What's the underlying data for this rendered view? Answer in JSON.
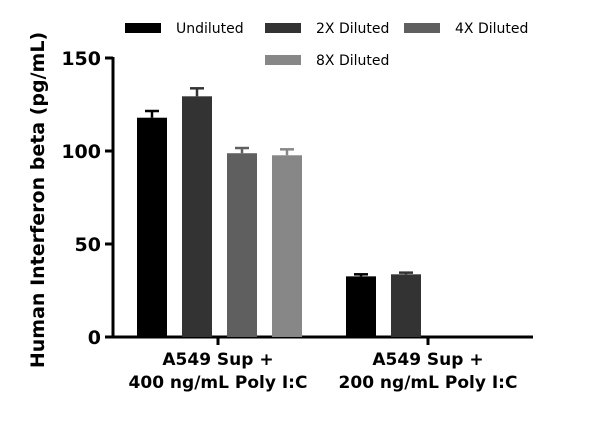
{
  "chart_data": {
    "type": "bar",
    "title": "",
    "xlabel": "",
    "ylabel": "Human Interferon beta (pg/mL)",
    "ylim": [
      0,
      150
    ],
    "yticks": [
      0,
      50,
      100,
      150
    ],
    "grid": false,
    "legend_position": "top",
    "categories": [
      [
        "A549 Sup +",
        "400 ng/mL Poly I:C"
      ],
      [
        "A549 Sup +",
        "200 ng/mL Poly I:C"
      ]
    ],
    "series": [
      {
        "name": "Undiluted",
        "color": "#000000",
        "values": [
          117.9,
          32.6
        ],
        "errors": [
          3.6,
          1.1
        ]
      },
      {
        "name": "2X Diluted",
        "color": "#333333",
        "values": [
          129.4,
          33.7
        ],
        "errors": [
          4.3,
          0.9
        ]
      },
      {
        "name": "4X Diluted",
        "color": "#5f5f5f",
        "values": [
          98.8,
          null
        ],
        "errors": [
          2.8,
          null
        ]
      },
      {
        "name": "8X Diluted",
        "color": "#878787",
        "values": [
          97.7,
          null
        ],
        "errors": [
          3.2,
          null
        ]
      }
    ]
  }
}
